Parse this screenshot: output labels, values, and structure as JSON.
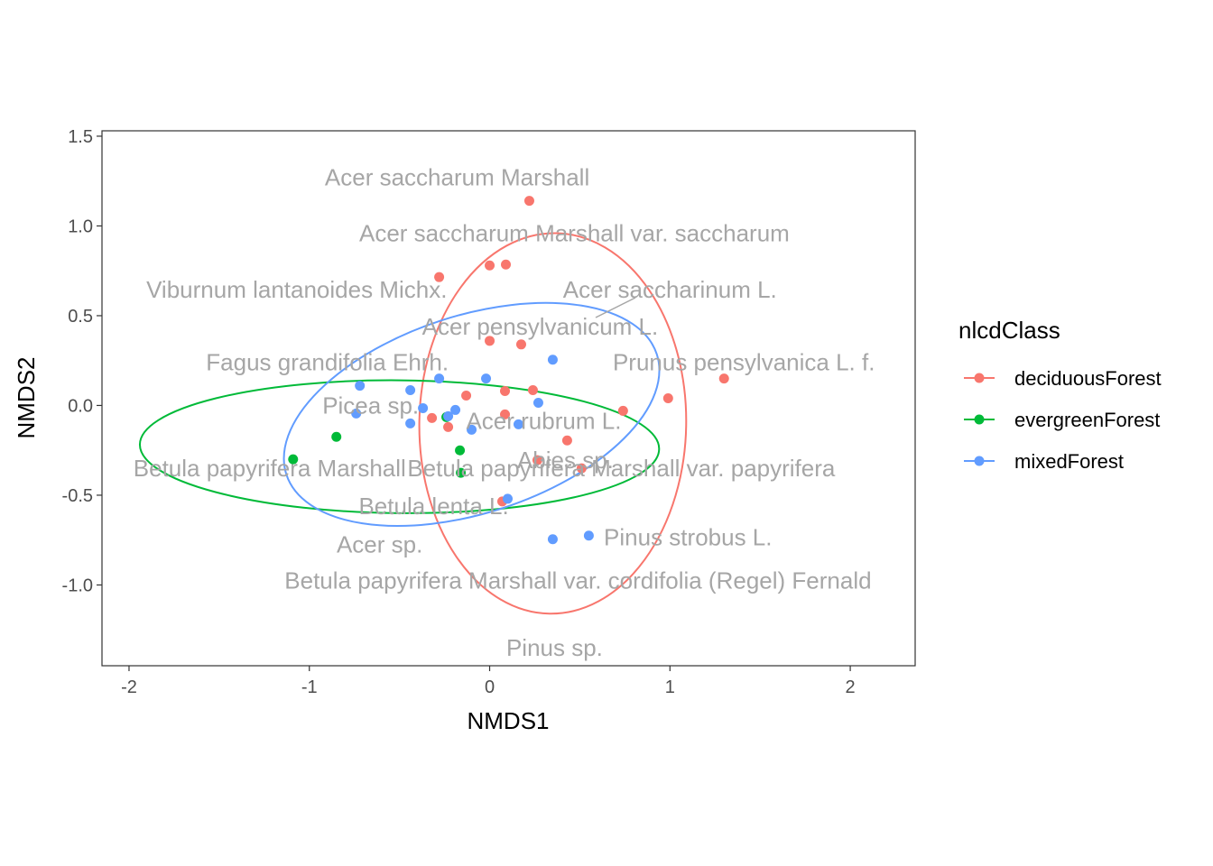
{
  "chart_data": {
    "type": "scatter",
    "xlabel": "NMDS1",
    "ylabel": "NMDS2",
    "xlim": [
      -2.15,
      2.36
    ],
    "ylim": [
      -1.45,
      1.53
    ],
    "x_ticks": [
      -2,
      -1,
      0,
      1,
      2
    ],
    "x_tick_labels": [
      "-2",
      "-1",
      "0",
      "1",
      "2"
    ],
    "y_ticks": [
      -1.0,
      -0.5,
      0.0,
      0.5,
      1.0,
      1.5
    ],
    "y_tick_labels": [
      "-1.0",
      "-0.5",
      "0.0",
      "0.5",
      "1.0",
      "1.5"
    ],
    "grid": false,
    "legend": {
      "title": "nlcdClass",
      "position": "right",
      "entries": [
        "deciduousForest",
        "evergreenForest",
        "mixedForest"
      ]
    },
    "series": [
      {
        "name": "deciduousForest",
        "color": "#F8766D",
        "points": [
          [
            0.22,
            1.14
          ],
          [
            0.0,
            0.78
          ],
          [
            0.09,
            0.785
          ],
          [
            -0.28,
            0.715
          ],
          [
            0.0,
            0.36
          ],
          [
            0.175,
            0.34
          ],
          [
            0.085,
            0.08
          ],
          [
            0.24,
            0.085
          ],
          [
            -0.13,
            0.055
          ],
          [
            0.99,
            0.04
          ],
          [
            1.3,
            0.15
          ],
          [
            -0.32,
            -0.07
          ],
          [
            -0.23,
            -0.12
          ],
          [
            0.74,
            -0.03
          ],
          [
            0.43,
            -0.195
          ],
          [
            0.265,
            -0.305
          ],
          [
            0.51,
            -0.35
          ],
          [
            0.07,
            -0.535
          ],
          [
            0.085,
            -0.05
          ]
        ],
        "ellipse": {
          "cx": 0.35,
          "cy": -0.1,
          "rx": 0.74,
          "ry": 1.06,
          "angle_deg": 1
        }
      },
      {
        "name": "evergreenForest",
        "color": "#00BA38",
        "points": [
          [
            -1.09,
            -0.3
          ],
          [
            -0.85,
            -0.175
          ],
          [
            -0.24,
            -0.065
          ],
          [
            -0.165,
            -0.25
          ],
          [
            -0.16,
            -0.375
          ]
        ],
        "ellipse": {
          "cx": -0.5,
          "cy": -0.23,
          "rx": 1.44,
          "ry": 0.37,
          "angle_deg": 0.5
        }
      },
      {
        "name": "mixedForest",
        "color": "#619CFF",
        "points": [
          [
            -0.72,
            0.11
          ],
          [
            -0.28,
            0.15
          ],
          [
            -0.02,
            0.15
          ],
          [
            0.35,
            0.255
          ],
          [
            -0.44,
            0.085
          ],
          [
            -0.37,
            -0.015
          ],
          [
            -0.19,
            -0.025
          ],
          [
            0.27,
            0.015
          ],
          [
            -0.74,
            -0.045
          ],
          [
            -0.44,
            -0.1
          ],
          [
            -0.1,
            -0.135
          ],
          [
            0.16,
            -0.105
          ],
          [
            0.1,
            -0.52
          ],
          [
            0.35,
            -0.745
          ],
          [
            0.55,
            -0.725
          ],
          [
            -0.23,
            -0.06
          ]
        ],
        "ellipse": {
          "cx": -0.1,
          "cy": -0.05,
          "rx": 1.08,
          "ry": 0.55,
          "angle_deg": -18
        }
      }
    ],
    "species_labels": [
      {
        "text": "Acer saccharum Marshall",
        "x": -0.18,
        "y": 1.27
      },
      {
        "text": "Acer saccharum Marshall var. saccharum",
        "x": 0.47,
        "y": 0.96
      },
      {
        "text": "Viburnum lantanoides Michx.",
        "x": -1.07,
        "y": 0.645
      },
      {
        "text": "Acer saccharinum L.",
        "x": 1.0,
        "y": 0.645
      },
      {
        "text": "Acer pensylvanicum L.",
        "x": 0.28,
        "y": 0.44
      },
      {
        "text": "Fagus grandifolia Ehrh.",
        "x": -0.9,
        "y": 0.24
      },
      {
        "text": "Prunus pensylvanica L. f.",
        "x": 1.41,
        "y": 0.24
      },
      {
        "text": "Picea sp.",
        "x": -0.66,
        "y": 0.0
      },
      {
        "text": "Acer rubrum L.",
        "x": 0.3,
        "y": -0.085
      },
      {
        "text": "Abies sp.",
        "x": 0.42,
        "y": -0.305
      },
      {
        "text": "Betula papyrifera Marshall",
        "x": -1.22,
        "y": -0.35
      },
      {
        "text": "Betula papyrifera Marshall var. papyrifera",
        "x": 0.73,
        "y": -0.35
      },
      {
        "text": "Betula lenta L.",
        "x": -0.31,
        "y": -0.56
      },
      {
        "text": "Pinus strobus L.",
        "x": 1.1,
        "y": -0.735
      },
      {
        "text": "Acer sp.",
        "x": -0.61,
        "y": -0.775
      },
      {
        "text": "Betula papyrifera Marshall var. cordifolia (Regel) Fernald",
        "x": 0.49,
        "y": -0.975
      },
      {
        "text": "Pinus sp.",
        "x": 0.36,
        "y": -1.35
      }
    ]
  }
}
